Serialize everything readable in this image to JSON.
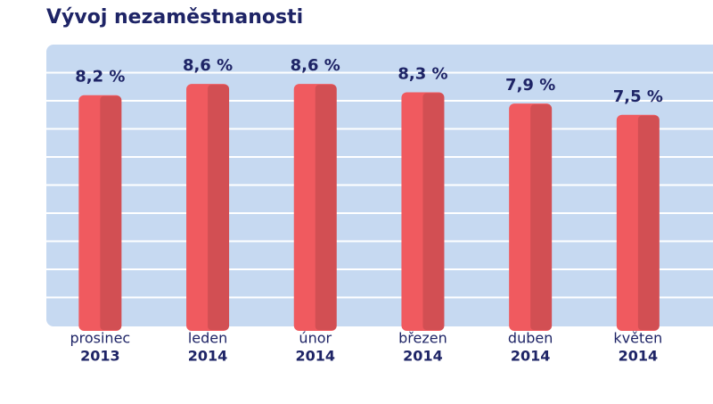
{
  "chart_data": {
    "type": "bar",
    "title": "Vývoj nezaměstnanosti",
    "categories": [
      [
        "prosinec",
        "2013"
      ],
      [
        "leden",
        "2014"
      ],
      [
        "únor",
        "2014"
      ],
      [
        "březen",
        "2014"
      ],
      [
        "duben",
        "2014"
      ],
      [
        "květen",
        "2014"
      ]
    ],
    "values": [
      8.2,
      8.6,
      8.6,
      8.3,
      7.9,
      7.5
    ],
    "value_labels": [
      "8,2 %",
      "8,6 %",
      "8,6 %",
      "8,3 %",
      "7,9 %",
      "7,5 %"
    ],
    "color": "#f05a5f",
    "ylim": [
      0,
      10
    ],
    "yticks": [
      0,
      1,
      2,
      3,
      4,
      5,
      6,
      7,
      8,
      9,
      10
    ],
    "grid": true
  }
}
